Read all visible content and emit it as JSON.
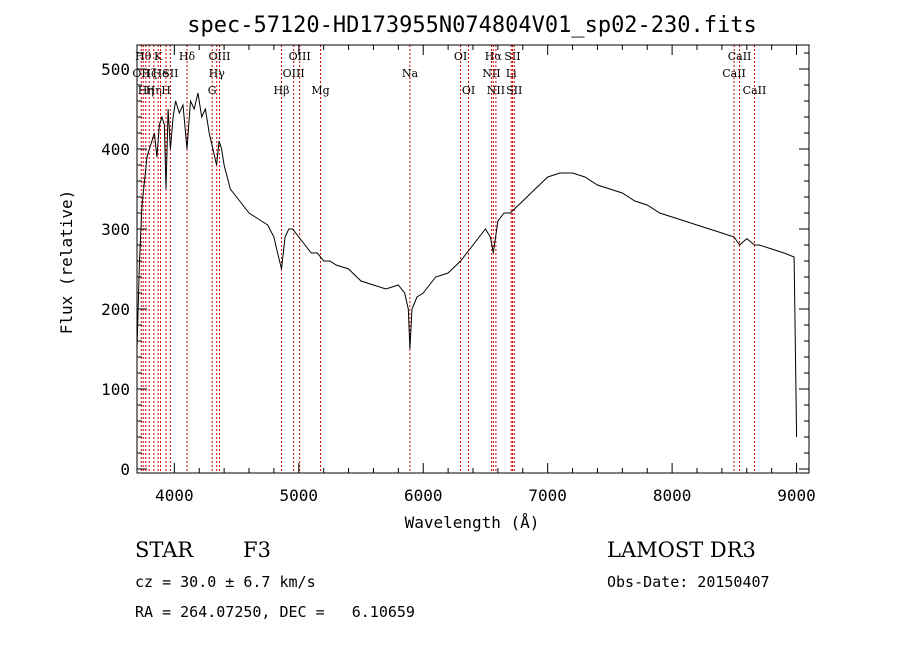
{
  "chart_data": {
    "type": "line",
    "title": "spec-57120-HD173955N074804V01_sp02-230.fits",
    "xlabel": "Wavelength (Å)",
    "ylabel": "Flux (relative)",
    "xlim": [
      3700,
      9100
    ],
    "ylim": [
      -5,
      530
    ],
    "xticks": [
      4000,
      5000,
      6000,
      7000,
      8000,
      9000
    ],
    "yticks": [
      0,
      100,
      200,
      300,
      400,
      500
    ],
    "series": [
      {
        "x": [
          3700,
          3720,
          3740,
          3760,
          3780,
          3800,
          3820,
          3840,
          3860,
          3880,
          3900,
          3920,
          3933,
          3950,
          3968,
          3990,
          4010,
          4040,
          4070,
          4102,
          4130,
          4160,
          4190,
          4220,
          4250,
          4280,
          4310,
          4340,
          4360,
          4380,
          4400,
          4450,
          4500,
          4550,
          4600,
          4650,
          4700,
          4750,
          4800,
          4830,
          4861,
          4890,
          4920,
          4950,
          5000,
          5050,
          5100,
          5150,
          5200,
          5250,
          5300,
          5400,
          5500,
          5600,
          5700,
          5800,
          5850,
          5880,
          5893,
          5910,
          5950,
          6000,
          6050,
          6100,
          6200,
          6300,
          6400,
          6500,
          6540,
          6563,
          6600,
          6650,
          6700,
          6800,
          6900,
          7000,
          7100,
          7200,
          7300,
          7400,
          7500,
          7600,
          7700,
          7800,
          7900,
          8000,
          8100,
          8200,
          8300,
          8400,
          8498,
          8542,
          8600,
          8662,
          8700,
          8800,
          8900,
          8980,
          9000
        ],
        "y": [
          150,
          260,
          330,
          360,
          390,
          400,
          410,
          420,
          390,
          430,
          440,
          430,
          350,
          450,
          400,
          440,
          460,
          445,
          455,
          400,
          460,
          450,
          470,
          440,
          450,
          420,
          400,
          380,
          410,
          400,
          380,
          350,
          340,
          330,
          320,
          315,
          310,
          305,
          290,
          270,
          250,
          290,
          300,
          300,
          290,
          280,
          270,
          270,
          260,
          260,
          255,
          250,
          235,
          230,
          225,
          230,
          220,
          200,
          150,
          200,
          215,
          220,
          230,
          240,
          245,
          260,
          280,
          300,
          290,
          270,
          310,
          320,
          320,
          335,
          350,
          365,
          370,
          370,
          365,
          355,
          350,
          345,
          335,
          330,
          320,
          315,
          310,
          305,
          300,
          295,
          290,
          280,
          288,
          280,
          280,
          275,
          270,
          265,
          40
        ]
      }
    ],
    "lines": [
      {
        "wl": 3734,
        "label": "OII",
        "row": 1
      },
      {
        "wl": 3750,
        "label": "Hθ",
        "row": 0
      },
      {
        "wl": 3771,
        "label": "Hη",
        "row": 2
      },
      {
        "wl": 3798,
        "label": "Hζ",
        "row": 1
      },
      {
        "wl": 3835,
        "label": "Hη",
        "row": 2
      },
      {
        "wl": 3870,
        "label": "K",
        "row": 0
      },
      {
        "wl": 3889,
        "label": "He",
        "row": 1
      },
      {
        "wl": 3933,
        "label": "H",
        "row": 2
      },
      {
        "wl": 3968,
        "label": "SII",
        "row": 1
      },
      {
        "wl": 4102,
        "label": "Hδ",
        "row": 0
      },
      {
        "wl": 4304,
        "label": "G",
        "row": 2
      },
      {
        "wl": 4341,
        "label": "Hγ",
        "row": 1
      },
      {
        "wl": 4363,
        "label": "OIII",
        "row": 0
      },
      {
        "wl": 4861,
        "label": "Hβ",
        "row": 2
      },
      {
        "wl": 4959,
        "label": "OIII",
        "row": 1
      },
      {
        "wl": 5007,
        "label": "OIII",
        "row": 0
      },
      {
        "wl": 5175,
        "label": "Mg",
        "row": 2
      },
      {
        "wl": 5893,
        "label": "Na",
        "row": 1
      },
      {
        "wl": 6300,
        "label": "OI",
        "row": 0
      },
      {
        "wl": 6364,
        "label": "OI",
        "row": 2
      },
      {
        "wl": 6548,
        "label": "NII",
        "row": 1
      },
      {
        "wl": 6563,
        "label": "Hα",
        "row": 0
      },
      {
        "wl": 6584,
        "label": "NII",
        "row": 2
      },
      {
        "wl": 6707,
        "label": "Li",
        "row": 1
      },
      {
        "wl": 6717,
        "label": "SII",
        "row": 0
      },
      {
        "wl": 6731,
        "label": "SII",
        "row": 2
      },
      {
        "wl": 8498,
        "label": "CaII",
        "row": 1
      },
      {
        "wl": 8542,
        "label": "CaII",
        "row": 0
      },
      {
        "wl": 8662,
        "label": "CaII",
        "row": 2
      }
    ]
  },
  "info": {
    "class_label": "STAR",
    "subclass": "F3",
    "survey": "LAMOST DR3",
    "cz": "cz = 30.0 ± 6.7 km/s",
    "obs_date": "Obs-Date: 20150407",
    "coords": "RA = 264.07250, DEC =   6.10659"
  }
}
